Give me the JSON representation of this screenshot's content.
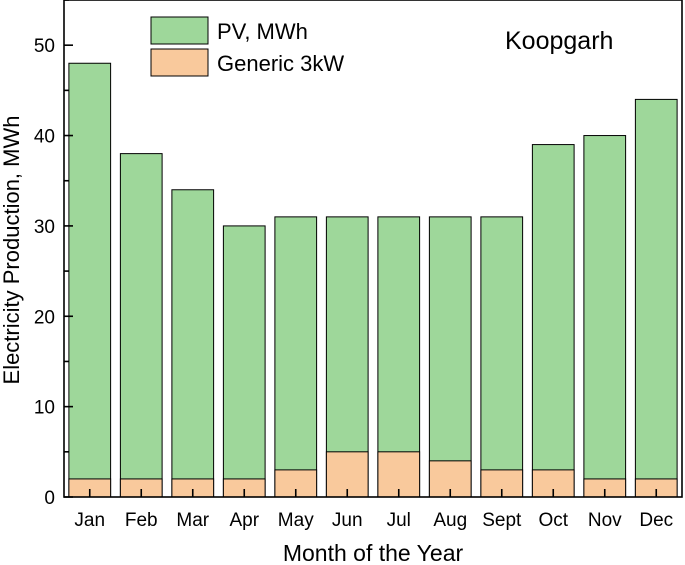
{
  "chart_data": {
    "type": "bar",
    "stacked": "overlay",
    "annotation": "Koopgarh",
    "xlabel": "Month of the Year",
    "ylabel": "Electricity Production, MWh",
    "categories": [
      "Jan",
      "Feb",
      "Mar",
      "Apr",
      "May",
      "Jun",
      "Jul",
      "Aug",
      "Sept",
      "Oct",
      "Nov",
      "Dec"
    ],
    "ylim": [
      0,
      55
    ],
    "yticks": [
      0,
      10,
      20,
      30,
      40,
      50
    ],
    "legend_position": "top-left",
    "series": [
      {
        "name": "PV, MWh",
        "color": "#9ed79a",
        "values": [
          48,
          38,
          34,
          30,
          31,
          31,
          31,
          31,
          31,
          39,
          40,
          44
        ]
      },
      {
        "name": "Generic 3kW",
        "color": "#f9c99c",
        "values": [
          2,
          2,
          2,
          2,
          3,
          5,
          5,
          4,
          3,
          3,
          2,
          2
        ]
      }
    ]
  }
}
